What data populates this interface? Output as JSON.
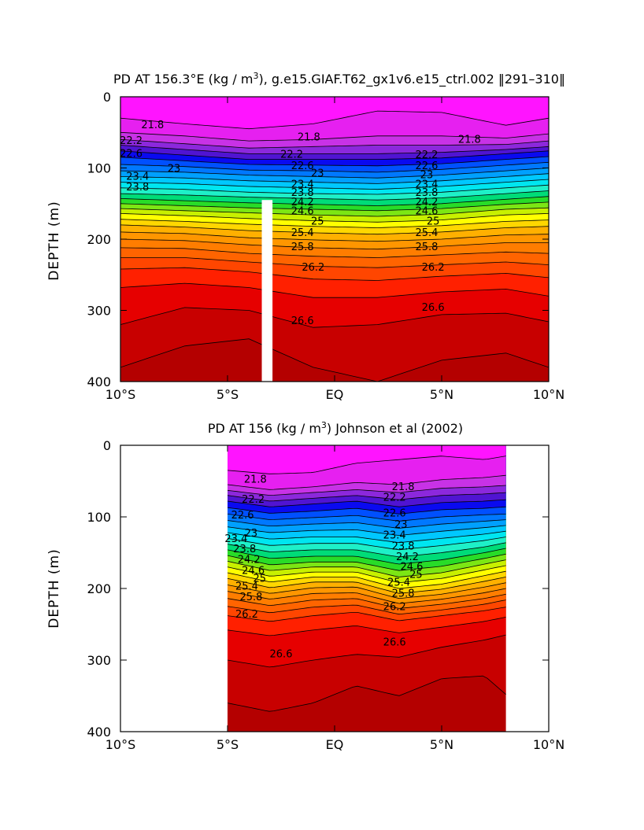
{
  "chart_data": [
    {
      "type": "contour",
      "title_prefix": "PD AT 156.3°E (kg / m",
      "title_sup": "3",
      "title_suffix": "), g.e15.GIAF.T62_gx1v6.e15_ctrl.002 ‖291–310‖",
      "ylabel": "DEPTH (m)",
      "xlabel": "",
      "x_range": [
        -10,
        10
      ],
      "y_range": [
        0,
        400
      ],
      "x_ticks": [
        -10,
        -5,
        0,
        5,
        10
      ],
      "x_tick_labels": [
        "10°S",
        "5°S",
        "EQ",
        "5°N",
        "10°N"
      ],
      "y_ticks": [
        0,
        100,
        200,
        300,
        400
      ],
      "y_tick_labels": [
        "0",
        "100",
        "200",
        "300",
        "400"
      ],
      "data_lon_range": [
        -10,
        10
      ],
      "masked_column_lat": [
        -3.4,
        -2.9
      ],
      "masked_column_top_depth": 145,
      "contour_levels": [
        21.8,
        22.0,
        22.2,
        22.4,
        22.6,
        22.8,
        23.0,
        23.2,
        23.4,
        23.6,
        23.8,
        24.0,
        24.2,
        24.4,
        24.6,
        24.8,
        25.0,
        25.2,
        25.4,
        25.6,
        25.8,
        26.0,
        26.2,
        26.4,
        26.6,
        26.8
      ],
      "contour_depths_at_lat": {
        "lat": [
          -10,
          -7,
          -4,
          -1,
          2,
          5,
          8,
          10
        ],
        "depths": [
          [
            30,
            38,
            45,
            38,
            20,
            22,
            40,
            30
          ],
          [
            50,
            55,
            62,
            60,
            55,
            55,
            58,
            52
          ],
          [
            60,
            66,
            72,
            70,
            68,
            68,
            67,
            62
          ],
          [
            68,
            74,
            80,
            80,
            80,
            78,
            74,
            70
          ],
          [
            76,
            82,
            88,
            88,
            88,
            86,
            80,
            76
          ],
          [
            85,
            90,
            95,
            96,
            97,
            94,
            88,
            84
          ],
          [
            95,
            98,
            103,
            104,
            106,
            102,
            96,
            92
          ],
          [
            104,
            106,
            110,
            112,
            114,
            110,
            104,
            100
          ],
          [
            112,
            114,
            118,
            120,
            122,
            118,
            112,
            108
          ],
          [
            120,
            122,
            126,
            128,
            130,
            126,
            120,
            116
          ],
          [
            128,
            130,
            134,
            136,
            137,
            134,
            128,
            124
          ],
          [
            136,
            138,
            141,
            143,
            145,
            142,
            136,
            132
          ],
          [
            143,
            146,
            149,
            151,
            153,
            150,
            144,
            140
          ],
          [
            150,
            153,
            156,
            158,
            160,
            157,
            151,
            148
          ],
          [
            157,
            160,
            163,
            166,
            168,
            165,
            158,
            156
          ],
          [
            164,
            167,
            171,
            174,
            176,
            173,
            166,
            164
          ],
          [
            172,
            175,
            179,
            182,
            184,
            181,
            175,
            173
          ],
          [
            180,
            183,
            188,
            191,
            193,
            190,
            184,
            182
          ],
          [
            190,
            192,
            198,
            201,
            203,
            200,
            194,
            193
          ],
          [
            200,
            202,
            208,
            212,
            214,
            210,
            205,
            205
          ],
          [
            212,
            213,
            220,
            224,
            226,
            222,
            218,
            220
          ],
          [
            226,
            226,
            232,
            238,
            240,
            236,
            232,
            236
          ],
          [
            242,
            240,
            246,
            256,
            258,
            252,
            248,
            254
          ],
          [
            268,
            262,
            268,
            282,
            282,
            274,
            270,
            280
          ],
          [
            320,
            296,
            300,
            324,
            320,
            306,
            304,
            316
          ],
          [
            380,
            350,
            340,
            380,
            400,
            370,
            360,
            380
          ]
        ]
      },
      "contour_labels": [
        {
          "text": "21.8",
          "lat": -8.5,
          "depth": 40
        },
        {
          "text": "21.8",
          "lat": -1.2,
          "depth": 57
        },
        {
          "text": "21.8",
          "lat": 6.3,
          "depth": 60
        },
        {
          "text": "22.2",
          "lat": -9.5,
          "depth": 62
        },
        {
          "text": "22.2",
          "lat": -2.0,
          "depth": 81
        },
        {
          "text": "22.2",
          "lat": 4.3,
          "depth": 82
        },
        {
          "text": "22.6",
          "lat": -9.5,
          "depth": 80
        },
        {
          "text": "22.6",
          "lat": -1.5,
          "depth": 97
        },
        {
          "text": "22.6",
          "lat": 4.3,
          "depth": 97
        },
        {
          "text": "23",
          "lat": -7.5,
          "depth": 101
        },
        {
          "text": "23",
          "lat": -0.8,
          "depth": 108
        },
        {
          "text": "23",
          "lat": 4.3,
          "depth": 110
        },
        {
          "text": "23.4",
          "lat": -9.2,
          "depth": 112
        },
        {
          "text": "23.4",
          "lat": -1.5,
          "depth": 123
        },
        {
          "text": "23.4",
          "lat": 4.3,
          "depth": 123
        },
        {
          "text": "23.8",
          "lat": -9.2,
          "depth": 127
        },
        {
          "text": "23.8",
          "lat": -1.5,
          "depth": 135
        },
        {
          "text": "23.8",
          "lat": 4.3,
          "depth": 135
        },
        {
          "text": "24.2",
          "lat": -1.5,
          "depth": 148
        },
        {
          "text": "24.2",
          "lat": 4.3,
          "depth": 148
        },
        {
          "text": "24.6",
          "lat": -1.5,
          "depth": 161
        },
        {
          "text": "24.6",
          "lat": 4.3,
          "depth": 161
        },
        {
          "text": "25",
          "lat": -0.8,
          "depth": 175
        },
        {
          "text": "25",
          "lat": 4.6,
          "depth": 175
        },
        {
          "text": "25.4",
          "lat": -1.5,
          "depth": 191
        },
        {
          "text": "25.4",
          "lat": 4.3,
          "depth": 191
        },
        {
          "text": "25.8",
          "lat": -1.5,
          "depth": 211
        },
        {
          "text": "25.8",
          "lat": 4.3,
          "depth": 211
        },
        {
          "text": "26.2",
          "lat": -1.0,
          "depth": 240
        },
        {
          "text": "26.2",
          "lat": 4.6,
          "depth": 240
        },
        {
          "text": "26.6",
          "lat": -1.5,
          "depth": 315
        },
        {
          "text": "26.6",
          "lat": 4.6,
          "depth": 296
        }
      ]
    },
    {
      "type": "contour",
      "title_prefix": "PD AT 156 (kg / m",
      "title_sup": "3",
      "title_suffix": ") Johnson et al (2002)",
      "ylabel": "DEPTH (m)",
      "xlabel": "",
      "x_range": [
        -10,
        10
      ],
      "y_range": [
        0,
        400
      ],
      "x_ticks": [
        -10,
        -5,
        0,
        5,
        10
      ],
      "x_tick_labels": [
        "10°S",
        "5°S",
        "EQ",
        "5°N",
        "10°N"
      ],
      "y_ticks": [
        0,
        100,
        200,
        300,
        400
      ],
      "y_tick_labels": [
        "0",
        "100",
        "200",
        "300",
        "400"
      ],
      "data_lon_range": [
        -5,
        8
      ],
      "contour_levels": [
        21.8,
        22.0,
        22.2,
        22.4,
        22.6,
        22.8,
        23.0,
        23.2,
        23.4,
        23.6,
        23.8,
        24.0,
        24.2,
        24.4,
        24.6,
        24.8,
        25.0,
        25.2,
        25.4,
        25.6,
        25.8,
        26.0,
        26.2,
        26.4,
        26.6,
        26.8
      ],
      "contour_depths_at_lat": {
        "lat": [
          -5,
          -3,
          -1,
          1,
          3,
          5,
          7,
          8
        ],
        "depths": [
          [
            35,
            40,
            38,
            25,
            20,
            15,
            20,
            15
          ],
          [
            55,
            62,
            58,
            52,
            55,
            48,
            45,
            42
          ],
          [
            63,
            70,
            66,
            62,
            66,
            60,
            58,
            56
          ],
          [
            70,
            78,
            74,
            70,
            76,
            70,
            68,
            66
          ],
          [
            78,
            86,
            82,
            78,
            86,
            80,
            78,
            76
          ],
          [
            87,
            95,
            92,
            88,
            96,
            90,
            88,
            86
          ],
          [
            96,
            104,
            101,
            98,
            106,
            100,
            97,
            96
          ],
          [
            105,
            113,
            110,
            108,
            116,
            110,
            106,
            104
          ],
          [
            114,
            122,
            119,
            118,
            126,
            120,
            115,
            112
          ],
          [
            122,
            131,
            128,
            128,
            136,
            130,
            124,
            120
          ],
          [
            130,
            140,
            137,
            137,
            146,
            140,
            133,
            128
          ],
          [
            138,
            149,
            146,
            146,
            156,
            150,
            142,
            136
          ],
          [
            146,
            158,
            155,
            155,
            166,
            160,
            150,
            144
          ],
          [
            154,
            167,
            163,
            163,
            175,
            169,
            158,
            152
          ],
          [
            162,
            175,
            170,
            170,
            184,
            178,
            166,
            160
          ],
          [
            170,
            183,
            177,
            177,
            192,
            186,
            174,
            168
          ],
          [
            178,
            191,
            184,
            184,
            200,
            194,
            182,
            176
          ],
          [
            186,
            199,
            191,
            191,
            207,
            201,
            190,
            184
          ],
          [
            195,
            207,
            199,
            198,
            214,
            208,
            198,
            192
          ],
          [
            204,
            215,
            207,
            206,
            221,
            215,
            206,
            200
          ],
          [
            214,
            224,
            216,
            214,
            228,
            222,
            214,
            208
          ],
          [
            225,
            234,
            226,
            223,
            236,
            230,
            222,
            216
          ],
          [
            238,
            246,
            238,
            233,
            245,
            238,
            231,
            226
          ],
          [
            258,
            266,
            258,
            252,
            262,
            254,
            246,
            240
          ],
          [
            300,
            310,
            300,
            292,
            296,
            282,
            272,
            265
          ],
          [
            360,
            372,
            360,
            336,
            350,
            326,
            322,
            348
          ]
        ]
      },
      "contour_labels": [
        {
          "text": "21.8",
          "lat": -3.7,
          "depth": 48
        },
        {
          "text": "21.8",
          "lat": 3.2,
          "depth": 58
        },
        {
          "text": "22.2",
          "lat": -3.8,
          "depth": 76
        },
        {
          "text": "22.2",
          "lat": 2.8,
          "depth": 73
        },
        {
          "text": "22.6",
          "lat": -4.3,
          "depth": 98
        },
        {
          "text": "22.6",
          "lat": 2.8,
          "depth": 95
        },
        {
          "text": "23",
          "lat": -3.9,
          "depth": 123
        },
        {
          "text": "23",
          "lat": 3.1,
          "depth": 111
        },
        {
          "text": "23.4",
          "lat": -4.6,
          "depth": 131
        },
        {
          "text": "23.4",
          "lat": 2.8,
          "depth": 126
        },
        {
          "text": "23.8",
          "lat": -4.2,
          "depth": 145
        },
        {
          "text": "23.8",
          "lat": 3.2,
          "depth": 141
        },
        {
          "text": "24.2",
          "lat": -4.0,
          "depth": 160
        },
        {
          "text": "24.2",
          "lat": 3.4,
          "depth": 156
        },
        {
          "text": "24.6",
          "lat": -3.8,
          "depth": 175
        },
        {
          "text": "24.6",
          "lat": 3.6,
          "depth": 170
        },
        {
          "text": "25",
          "lat": -3.5,
          "depth": 186
        },
        {
          "text": "25",
          "lat": 3.8,
          "depth": 181
        },
        {
          "text": "25.4",
          "lat": -4.1,
          "depth": 197
        },
        {
          "text": "25.4",
          "lat": 3.0,
          "depth": 192
        },
        {
          "text": "25.8",
          "lat": -3.9,
          "depth": 212
        },
        {
          "text": "25.8",
          "lat": 3.2,
          "depth": 207
        },
        {
          "text": "26.2",
          "lat": -4.1,
          "depth": 236
        },
        {
          "text": "26.2",
          "lat": 2.8,
          "depth": 226
        },
        {
          "text": "26.6",
          "lat": -2.5,
          "depth": 292
        },
        {
          "text": "26.6",
          "lat": 2.8,
          "depth": 275
        }
      ]
    }
  ],
  "colors": {
    "density_scale": [
      "#ff14ff",
      "#e620f0",
      "#c832e6",
      "#8c28dc",
      "#5014d2",
      "#0a0af0",
      "#0050ff",
      "#0078ff",
      "#00a0ff",
      "#00c8ff",
      "#00e6f0",
      "#1ef0c8",
      "#00dc78",
      "#28dc28",
      "#7ce614",
      "#c8f000",
      "#ffff00",
      "#ffd700",
      "#ffb000",
      "#ff9600",
      "#ff7d00",
      "#ff6400",
      "#ff4600",
      "#ff2000",
      "#e60000",
      "#c80000",
      "#b40000"
    ],
    "masked": "#ffffff",
    "land": "#c8c8c8"
  }
}
